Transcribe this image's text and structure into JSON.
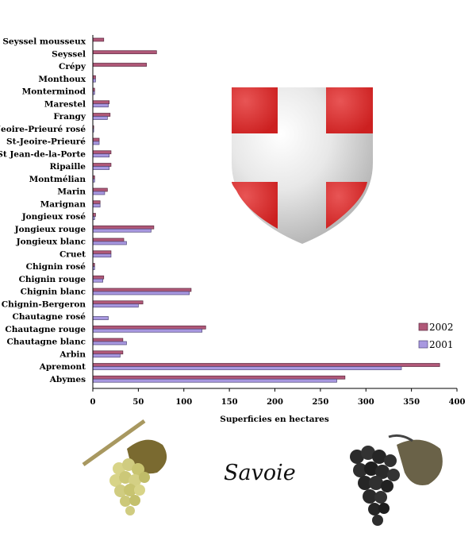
{
  "chart_data": {
    "type": "bar",
    "orientation": "horizontal",
    "title": "",
    "xlabel": "Superficies en hectares",
    "ylabel": "",
    "xlim": [
      0,
      400
    ],
    "xticks": [
      0,
      50,
      100,
      150,
      200,
      250,
      300,
      350,
      400
    ],
    "grid": false,
    "legend_position": "right",
    "categories": [
      "Seyssel mousseux",
      "Seyssel",
      "Crépy",
      "Monthoux",
      "Monterminod",
      "Marestel",
      "Frangy",
      "St-Jeoire-Prieuré rosé",
      "St-Jeoire-Prieuré",
      "St Jean-de-la-Porte",
      "Ripaille",
      "Montmélian",
      "Marin",
      "Marignan",
      "Jongieux rosé",
      "Jongieux rouge",
      "Jongieux blanc",
      "Cruet",
      "Chignin rosé",
      "Chignin rouge",
      "Chignin blanc",
      "Chignin-Bergeron",
      "Chautagne rosé",
      "Chautagne rouge",
      "Chautagne blanc",
      "Arbin",
      "Apremont",
      "Abymes"
    ],
    "series": [
      {
        "name": "2002",
        "color": "#b05878",
        "values": [
          12,
          70,
          59,
          3,
          2,
          18,
          19,
          1,
          7,
          20,
          20,
          2,
          16,
          8,
          3,
          67,
          34,
          20,
          2,
          12,
          108,
          55,
          0,
          124,
          33,
          33,
          381,
          277
        ]
      },
      {
        "name": "2001",
        "color": "#a898e0",
        "values": [
          0,
          0,
          0,
          3,
          2,
          17,
          16,
          1,
          7,
          18,
          18,
          2,
          13,
          8,
          2,
          64,
          37,
          20,
          2,
          11,
          106,
          50,
          17,
          120,
          37,
          30,
          339,
          268
        ]
      }
    ]
  },
  "caption": {
    "title": "Savoie"
  },
  "colors": {
    "shield_red": "#d52b2b",
    "shield_grey": "#cccccc"
  },
  "icons": {
    "emblem": "savoy-shield-icon",
    "left_grape": "white-grape-icon",
    "right_grape": "black-grape-icon"
  }
}
